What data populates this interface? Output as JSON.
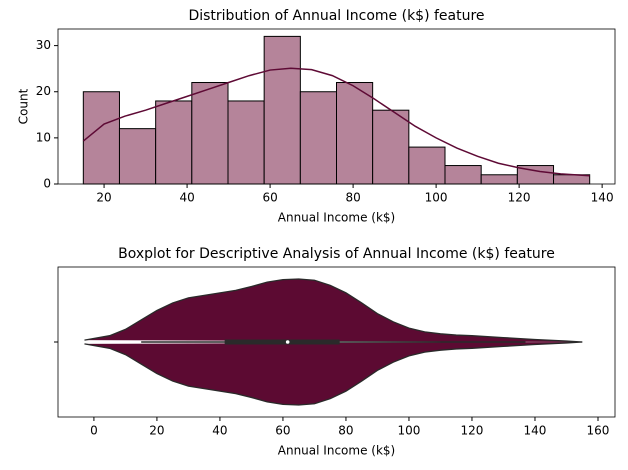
{
  "chart_data": [
    {
      "type": "histogram",
      "title": "Distribution of Annual Income (k$) feature",
      "xlabel": "Annual Income (k$)",
      "ylabel": "Count",
      "bins": [
        15,
        23.71,
        32.43,
        41.14,
        49.86,
        58.57,
        67.29,
        76,
        84.71,
        93.43,
        102.14,
        110.86,
        119.57,
        128.29,
        137
      ],
      "values": [
        20,
        12,
        18,
        22,
        18,
        32,
        20,
        22,
        16,
        8,
        4,
        2,
        4,
        2
      ],
      "color": "#b5849a",
      "line_color": "#5e0a35",
      "kde": {
        "x": [
          15,
          20,
          25,
          30,
          35,
          40,
          45,
          50,
          55,
          60,
          65,
          70,
          75,
          80,
          85,
          90,
          95,
          100,
          105,
          110,
          115,
          120,
          125,
          130,
          137
        ],
        "values": [
          9.3,
          13,
          14.7,
          16,
          17.5,
          19,
          20.5,
          22,
          23.5,
          24.7,
          25.1,
          24.8,
          23.5,
          21.3,
          18.5,
          15.5,
          12.5,
          10,
          7.8,
          6,
          4.5,
          3.5,
          2.7,
          2.2,
          1.8
        ]
      },
      "xlim": [
        8.9,
        143.1
      ],
      "xticks": [
        20,
        40,
        60,
        80,
        100,
        120,
        140
      ],
      "ylim": [
        0,
        33.6
      ],
      "yticks": [
        0,
        10,
        20,
        30
      ]
    },
    {
      "type": "violin",
      "title": "Boxplot for Descriptive Analysis of Annual Income (k$) feature",
      "xlabel": "Annual Income (k$)",
      "categories": [
        null
      ],
      "color": "#5c0a32",
      "density": {
        "x": [
          -3,
          5,
          10,
          15,
          20,
          25,
          30,
          35,
          40,
          45,
          50,
          55,
          60,
          65,
          70,
          75,
          80,
          85,
          90,
          95,
          100,
          105,
          110,
          115,
          120,
          130,
          140,
          150,
          155
        ],
        "values": [
          0.03,
          0.1,
          0.2,
          0.35,
          0.5,
          0.62,
          0.7,
          0.74,
          0.78,
          0.82,
          0.88,
          0.95,
          0.99,
          1.0,
          0.98,
          0.9,
          0.78,
          0.62,
          0.45,
          0.32,
          0.22,
          0.16,
          0.13,
          0.11,
          0.1,
          0.07,
          0.04,
          0.015,
          0
        ]
      },
      "quartiles": [
        41.5,
        61.5,
        78
      ],
      "whiskers": [
        15,
        137
      ],
      "xlim": [
        -11.4,
        165.4
      ],
      "xticks": [
        0,
        20,
        40,
        60,
        80,
        100,
        120,
        140,
        160
      ]
    }
  ]
}
